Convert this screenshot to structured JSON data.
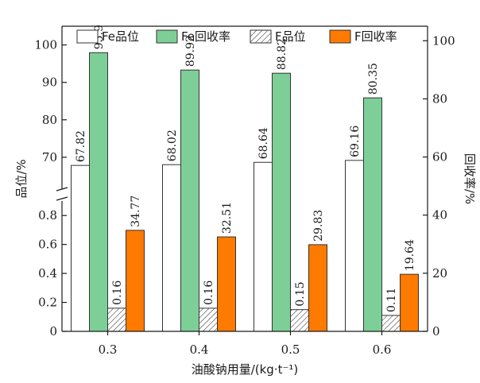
{
  "chart_data": {
    "type": "bar",
    "categories": [
      "0.3",
      "0.4",
      "0.5",
      "0.6"
    ],
    "xlabel": "油酸钠用量/(kg·t⁻¹)",
    "ylabel_left": "品位/%",
    "ylabel_right": "回收率/%",
    "left_axis_upper": {
      "range": [
        60,
        105
      ],
      "ticks": [
        "70",
        "80",
        "90",
        "100"
      ],
      "tick_values": [
        70,
        80,
        90,
        100
      ]
    },
    "left_axis_lower": {
      "range": [
        0,
        0.9
      ],
      "ticks": [
        "0",
        "0.2",
        "0.4",
        "0.6",
        "0.8"
      ],
      "tick_values": [
        0,
        0.2,
        0.4,
        0.6,
        0.8
      ]
    },
    "right_axis": {
      "range": [
        0,
        105
      ],
      "ticks": [
        "0",
        "20",
        "40",
        "60",
        "80",
        "100"
      ],
      "tick_values": [
        0,
        20,
        40,
        60,
        80,
        100
      ]
    },
    "series": [
      {
        "name": "Fe品位",
        "axis": "left",
        "values": [
          67.82,
          68.02,
          68.64,
          69.16
        ],
        "labels": [
          "67.82",
          "68.02",
          "68.64",
          "69.16"
        ],
        "color": "#ffffff",
        "pattern": "none"
      },
      {
        "name": "Fe回收率",
        "axis": "right",
        "values": [
          95.9,
          89.92,
          88.82,
          80.35
        ],
        "labels": [
          "95.9",
          "89.92",
          "88.82",
          "80.35"
        ],
        "color": "#7dcf97",
        "pattern": "none"
      },
      {
        "name": "F品位",
        "axis": "left",
        "values": [
          0.16,
          0.16,
          0.15,
          0.11
        ],
        "labels": [
          "0.16",
          "0.16",
          "0.15",
          "0.11"
        ],
        "color": "#ffffff",
        "pattern": "hatch"
      },
      {
        "name": "F回收率",
        "axis": "right",
        "values": [
          34.77,
          32.51,
          29.83,
          19.64
        ],
        "labels": [
          "34.77",
          "32.51",
          "29.83",
          "19.64"
        ],
        "color": "#ff7a00",
        "pattern": "none"
      }
    ],
    "legend_position": "top",
    "grid": false
  }
}
